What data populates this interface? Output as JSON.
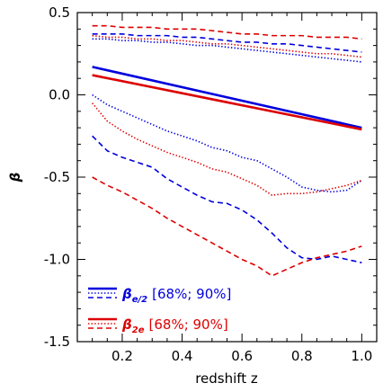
{
  "chart_data": {
    "type": "line",
    "xlabel": "redshift z",
    "ylabel": "β",
    "xlim": [
      0.05,
      1.05
    ],
    "ylim": [
      -1.5,
      0.5
    ],
    "grid": false,
    "legend_placement": "bottom-left",
    "x_ticks": [
      0.2,
      0.4,
      0.6,
      0.8,
      1.0
    ],
    "x_tick_labels": [
      "0.2",
      "0.4",
      "0.6",
      "0.8",
      "1.0"
    ],
    "y_ticks": [
      -1.5,
      -1.0,
      -0.5,
      0.0,
      0.5
    ],
    "y_tick_labels": [
      "-1.5",
      "-1.0",
      "-0.5",
      "0.0",
      "0.5"
    ],
    "x": [
      0.1,
      0.15,
      0.2,
      0.25,
      0.3,
      0.35,
      0.4,
      0.45,
      0.5,
      0.55,
      0.6,
      0.65,
      0.7,
      0.75,
      0.8,
      0.85,
      0.9,
      0.95,
      1.0
    ],
    "groups": [
      {
        "color": "#0000dd",
        "legend_main": "β",
        "legend_sub": "e/2",
        "legend_rest": "[68%; 90%]",
        "series": [
          {
            "style": "solid",
            "x": [
              0.1,
              1.0
            ],
            "values": [
              0.17,
              -0.2
            ]
          },
          {
            "style": "dashed",
            "values": [
              0.37,
              0.37,
              0.37,
              0.36,
              0.36,
              0.36,
              0.35,
              0.35,
              0.34,
              0.33,
              0.32,
              0.32,
              0.31,
              0.31,
              0.3,
              0.29,
              0.28,
              0.27,
              0.26
            ]
          },
          {
            "style": "dotted",
            "values": [
              0.34,
              0.34,
              0.33,
              0.33,
              0.32,
              0.32,
              0.31,
              0.3,
              0.3,
              0.29,
              0.28,
              0.27,
              0.26,
              0.25,
              0.24,
              0.23,
              0.22,
              0.21,
              0.2
            ]
          },
          {
            "style": "dotted",
            "values": [
              0.0,
              -0.06,
              -0.1,
              -0.14,
              -0.18,
              -0.22,
              -0.25,
              -0.28,
              -0.32,
              -0.34,
              -0.38,
              -0.4,
              -0.45,
              -0.5,
              -0.56,
              -0.58,
              -0.59,
              -0.58,
              -0.52
            ]
          },
          {
            "style": "dashed",
            "values": [
              -0.25,
              -0.34,
              -0.38,
              -0.41,
              -0.44,
              -0.51,
              -0.56,
              -0.61,
              -0.65,
              -0.66,
              -0.7,
              -0.76,
              -0.84,
              -0.93,
              -0.99,
              -1.0,
              -0.98,
              -1.0,
              -1.02
            ]
          }
        ]
      },
      {
        "color": "#dd0000",
        "legend_main": "β",
        "legend_sub": "2e",
        "legend_rest": "[68%; 90%]",
        "series": [
          {
            "style": "solid",
            "x": [
              0.1,
              1.0
            ],
            "values": [
              0.12,
              -0.21
            ]
          },
          {
            "style": "dashed",
            "values": [
              0.42,
              0.42,
              0.41,
              0.41,
              0.41,
              0.4,
              0.4,
              0.4,
              0.39,
              0.38,
              0.37,
              0.37,
              0.36,
              0.36,
              0.36,
              0.35,
              0.35,
              0.35,
              0.34
            ]
          },
          {
            "style": "dotted",
            "values": [
              0.36,
              0.35,
              0.35,
              0.34,
              0.34,
              0.33,
              0.33,
              0.32,
              0.31,
              0.31,
              0.3,
              0.29,
              0.28,
              0.27,
              0.26,
              0.25,
              0.25,
              0.24,
              0.23
            ]
          },
          {
            "style": "dotted",
            "values": [
              -0.05,
              -0.16,
              -0.22,
              -0.27,
              -0.31,
              -0.35,
              -0.38,
              -0.41,
              -0.45,
              -0.47,
              -0.51,
              -0.55,
              -0.61,
              -0.6,
              -0.6,
              -0.59,
              -0.57,
              -0.55,
              -0.52
            ]
          },
          {
            "style": "dashed",
            "values": [
              -0.5,
              -0.55,
              -0.59,
              -0.64,
              -0.69,
              -0.75,
              -0.8,
              -0.85,
              -0.9,
              -0.95,
              -1.0,
              -1.04,
              -1.1,
              -1.06,
              -1.02,
              -0.99,
              -0.97,
              -0.95,
              -0.92
            ]
          }
        ]
      }
    ]
  }
}
